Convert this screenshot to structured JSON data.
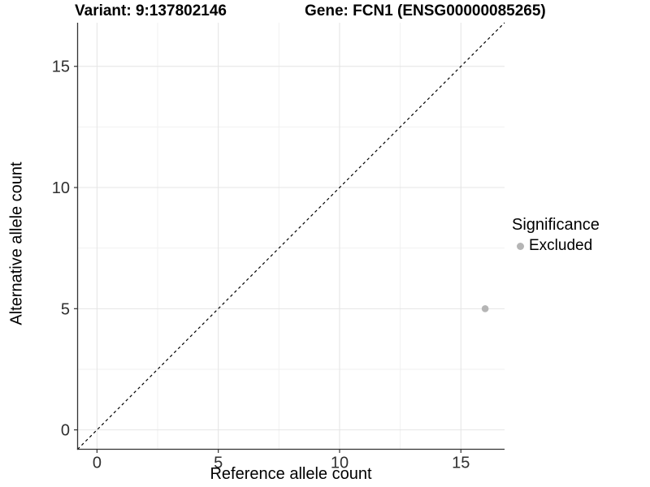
{
  "header": {
    "variant_title": "Variant: 9:137802146",
    "gene_title": "Gene: FCN1 (ENSG00000085265)"
  },
  "legend": {
    "title": "Significance",
    "items": [
      {
        "label": "Excluded",
        "color": "#b5b5b5"
      }
    ]
  },
  "chart_data": {
    "type": "scatter",
    "title": "Variant: 9:137802146 / Gene: FCN1 (ENSG00000085265)",
    "xlabel": "Reference allele count",
    "ylabel": "Alternative allele count",
    "xlim": [
      -0.8,
      16.8
    ],
    "ylim": [
      -0.8,
      16.8
    ],
    "x_ticks": [
      0,
      5,
      10,
      15
    ],
    "y_ticks": [
      0,
      5,
      10,
      15
    ],
    "x_minor_ticks": [
      2.5,
      7.5,
      12.5
    ],
    "y_minor_ticks": [
      2.5,
      7.5,
      12.5
    ],
    "grid": "major+minor",
    "legend_position": "right",
    "series": [
      {
        "name": "Excluded",
        "color": "#b5b5b5",
        "points": [
          {
            "x": 16,
            "y": 5
          }
        ]
      }
    ],
    "reference_line": {
      "type": "identity",
      "style": "dashed",
      "color": "#000000"
    }
  },
  "colors": {
    "background": "#ffffff",
    "grid_major": "#e4e4e4",
    "grid_minor": "#f1f1f1",
    "axis_line": "#333333",
    "tick_text": "#303030",
    "point": "#b5b5b5"
  }
}
